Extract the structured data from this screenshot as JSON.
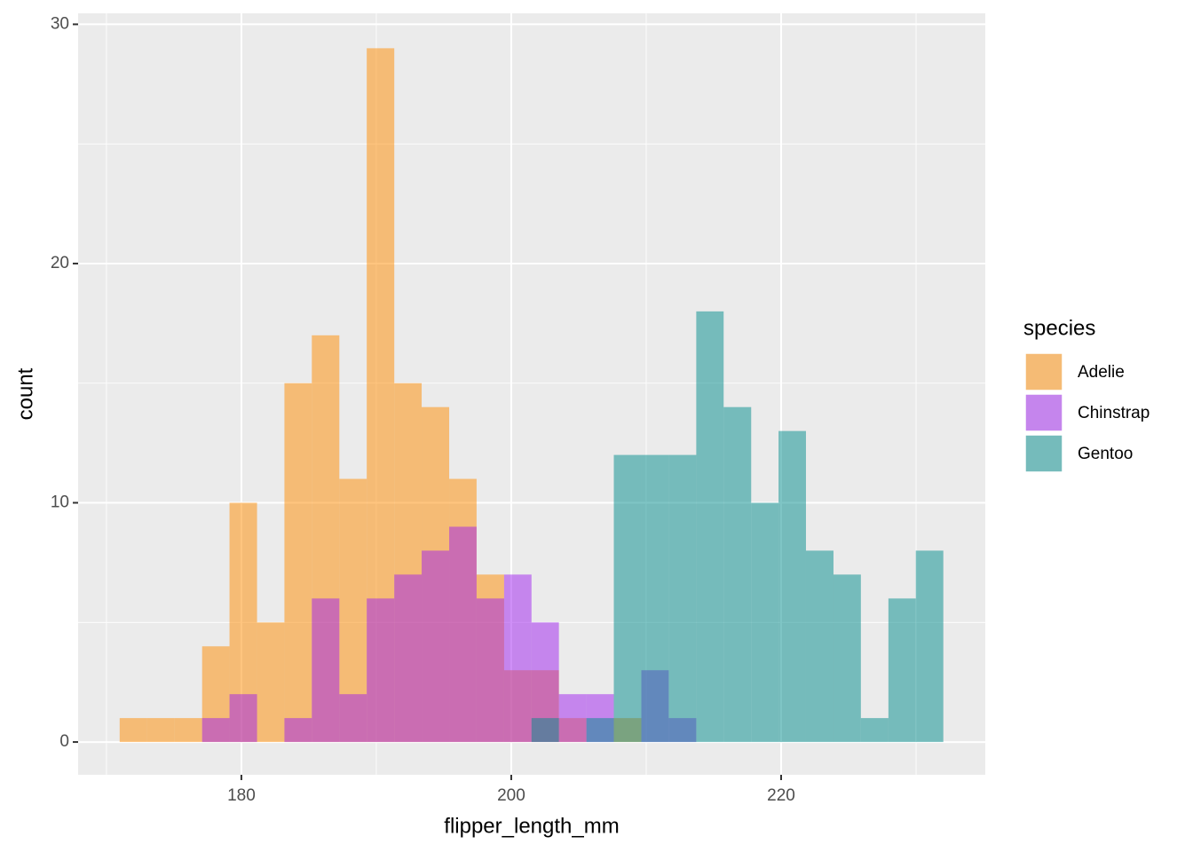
{
  "chart_data": {
    "type": "histogram",
    "x_label": "flipper_length_mm",
    "y_label": "count",
    "legend_title": "species",
    "legend_position": "right",
    "grid": true,
    "bins": [
      170.98,
      173.02,
      175.05,
      177.09,
      179.12,
      181.16,
      183.19,
      185.22,
      187.26,
      189.29,
      191.33,
      193.36,
      195.4,
      197.43,
      199.47,
      201.5,
      203.53,
      205.57,
      207.6,
      209.64,
      211.67,
      213.71,
      215.74,
      217.78,
      219.81,
      221.84,
      223.88,
      225.91,
      227.95,
      229.98,
      232.02
    ],
    "series": [
      {
        "name": "Adelie",
        "color": "#ff8c00",
        "opacity": 0.5,
        "values": [
          1,
          1,
          1,
          4,
          10,
          5,
          15,
          17,
          11,
          29,
          15,
          14,
          11,
          7,
          3,
          3,
          1,
          0,
          1,
          0,
          0,
          0,
          0,
          0,
          0,
          0,
          0,
          0,
          0,
          0
        ]
      },
      {
        "name": "Chinstrap",
        "color": "#a020f0",
        "opacity": 0.5,
        "values": [
          0,
          0,
          0,
          1,
          2,
          0,
          1,
          6,
          2,
          6,
          7,
          8,
          9,
          6,
          7,
          5,
          2,
          2,
          0,
          3,
          1,
          0,
          0,
          0,
          0,
          0,
          0,
          0,
          0,
          0
        ]
      },
      {
        "name": "Gentoo",
        "color": "#008b8b",
        "opacity": 0.5,
        "values": [
          0,
          0,
          0,
          0,
          0,
          0,
          0,
          0,
          0,
          0,
          0,
          0,
          0,
          0,
          0,
          1,
          0,
          1,
          12,
          12,
          12,
          18,
          14,
          10,
          13,
          8,
          7,
          1,
          6,
          8
        ]
      }
    ],
    "xlim": [
      167.9,
      235.13
    ],
    "ylim": [
      -1.37,
      30.46
    ],
    "xticks": [
      180,
      200,
      220
    ],
    "yticks": [
      0,
      10,
      20,
      30
    ],
    "x_minor_ticks": [
      170,
      190,
      210,
      230
    ],
    "y_minor_ticks": [
      5,
      15,
      25
    ]
  }
}
